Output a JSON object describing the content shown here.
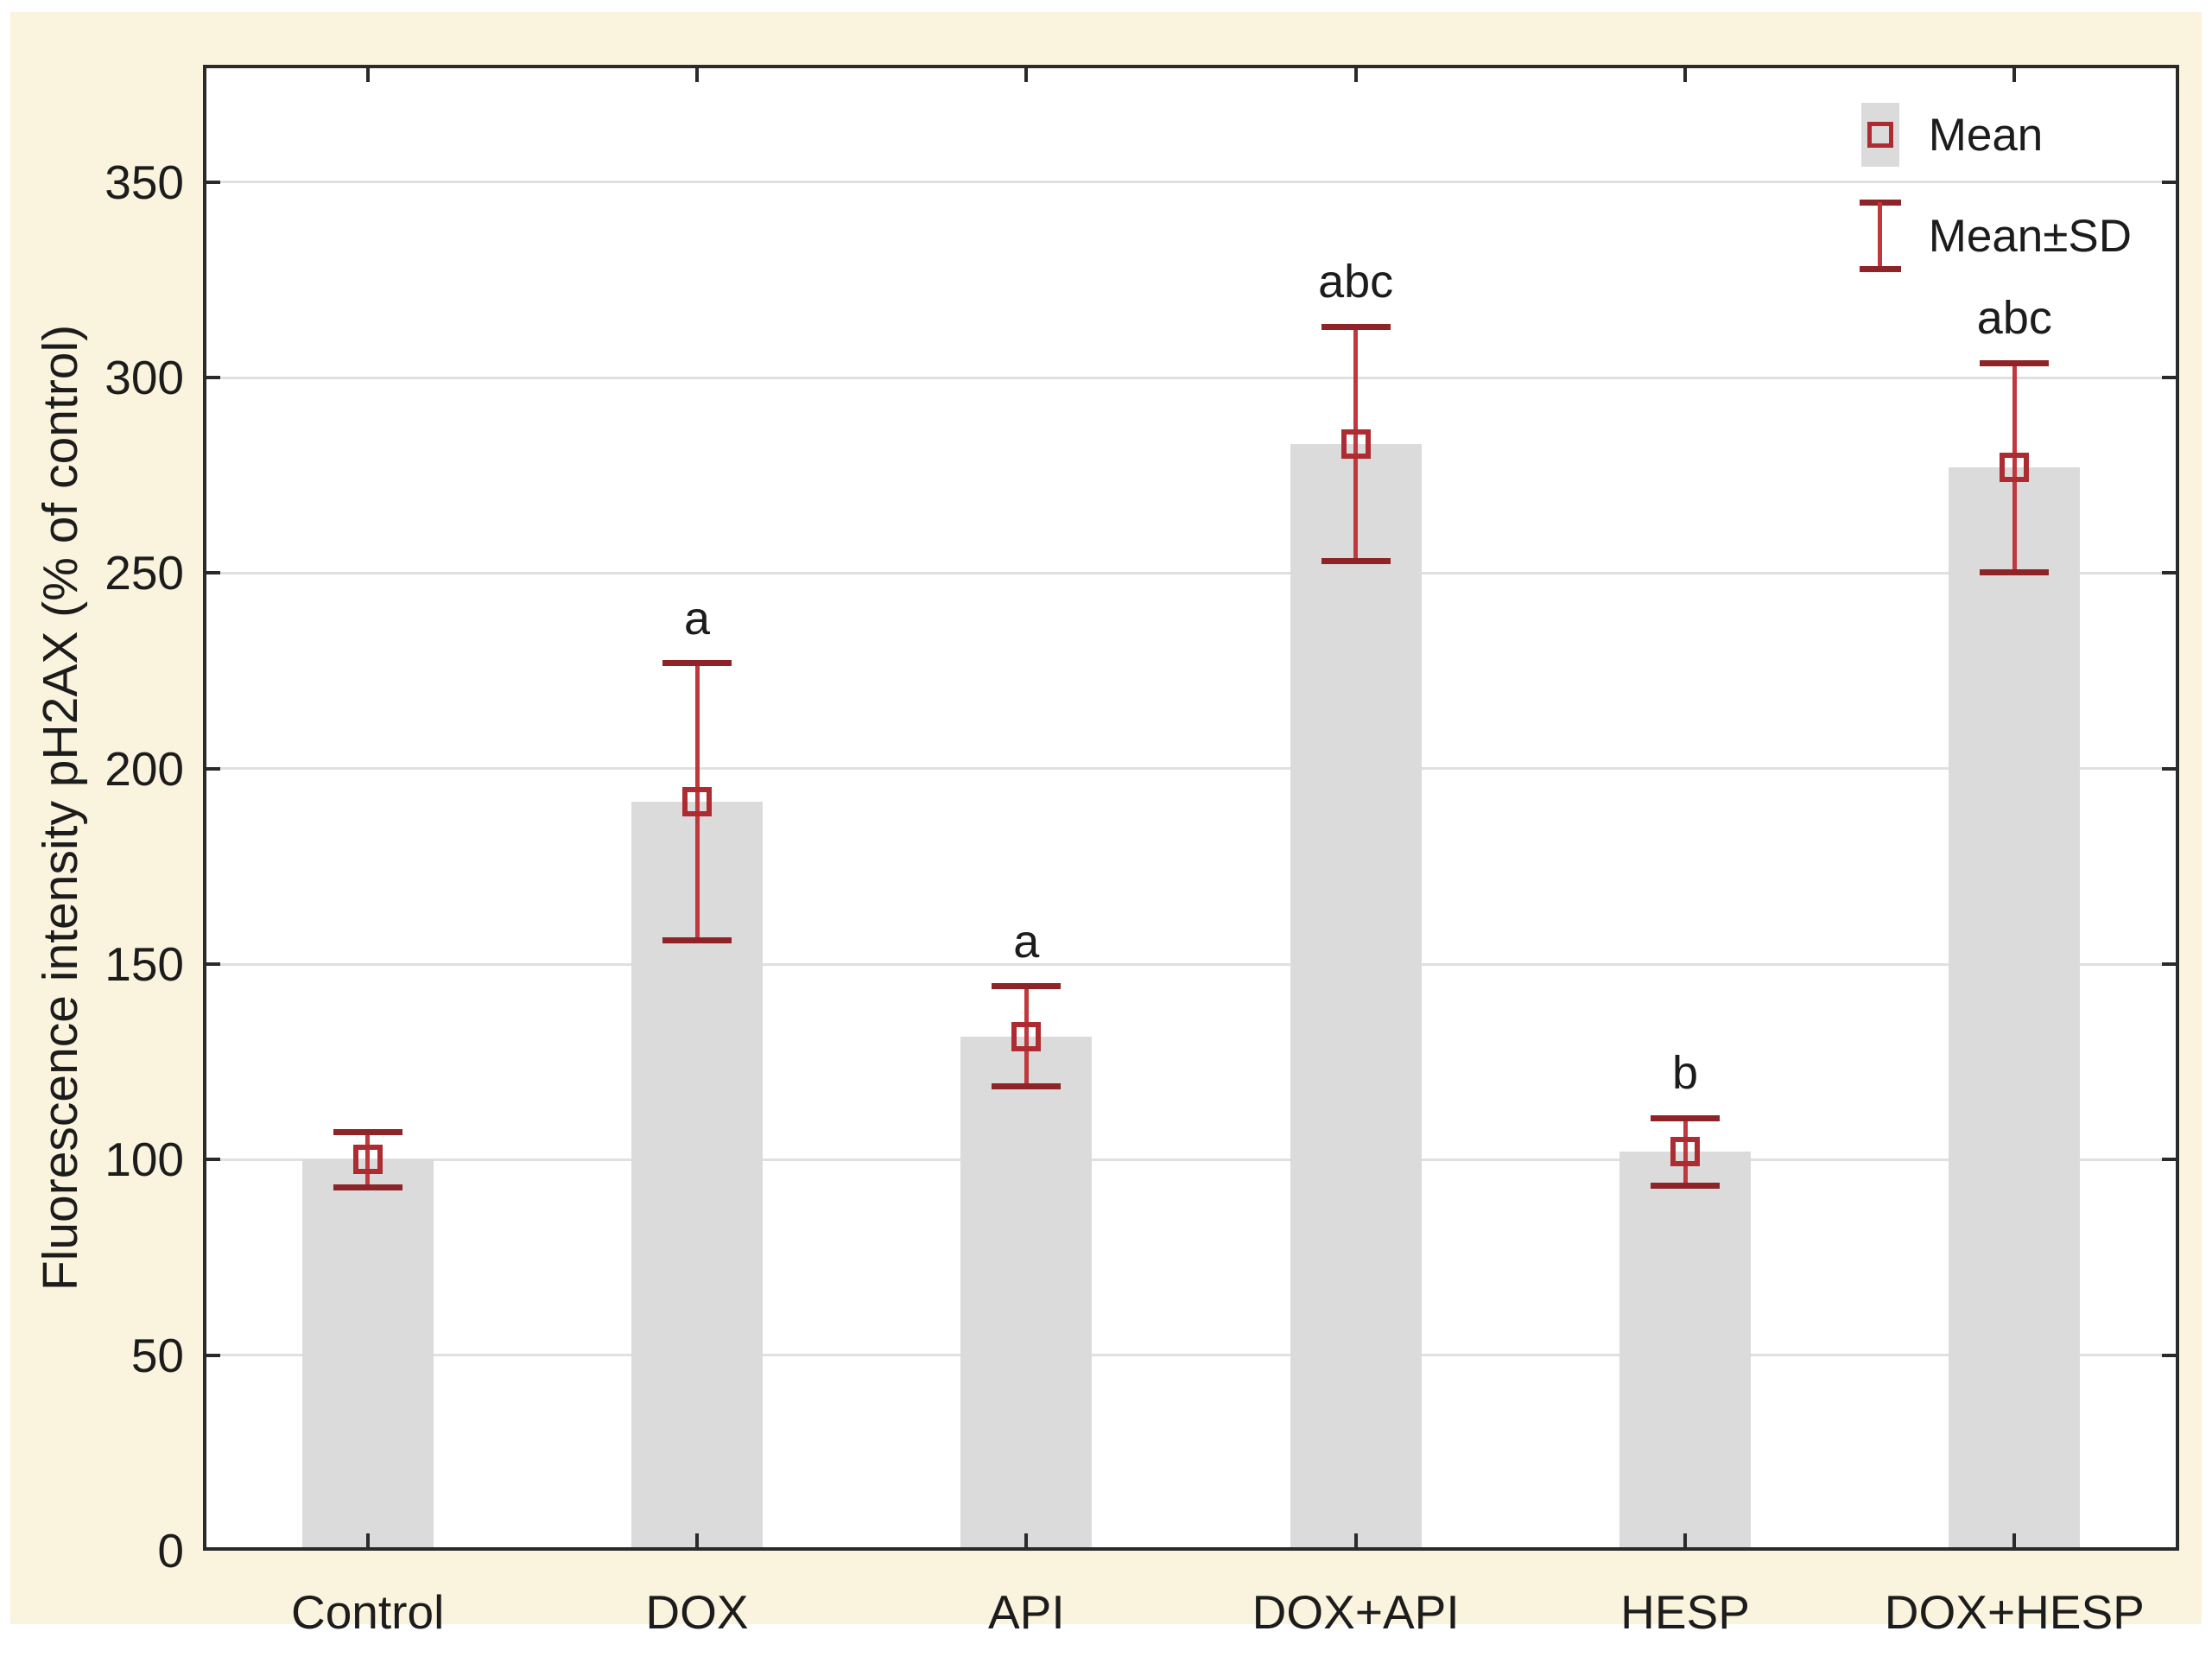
{
  "colors": {
    "background": "#FAF3DD",
    "plot_background": "#FFFFFF",
    "bar_fill": "#DBDBDB",
    "grid_line": "#E0E0E0",
    "axis_frame": "#2A2A2A",
    "error_line": "#C0383D",
    "error_cap": "#8E2428",
    "mean_marker": "#AD2C31",
    "text": "#1C1C1C"
  },
  "chart_data": {
    "type": "bar",
    "title": "",
    "xlabel": "",
    "ylabel": "Fluorescence intensity pH2AX (% of control)",
    "categories": [
      "Control",
      "DOX",
      "API",
      "DOX+API",
      "HESP",
      "DOX+HESP"
    ],
    "values": [
      100,
      191.5,
      131.5,
      283,
      102,
      277
    ],
    "sd": [
      7,
      35.5,
      12.8,
      30,
      8.6,
      26.7
    ],
    "annotations": [
      "",
      "a",
      "a",
      "abc",
      "b",
      "abc"
    ],
    "ylim": [
      0,
      380
    ],
    "yticks": [
      0,
      50,
      100,
      150,
      200,
      250,
      300,
      350
    ],
    "grid": "horizontal",
    "error_bars": "mean_plus_minus_sd",
    "legend": {
      "position": "top-right",
      "items": [
        {
          "symbol": "square",
          "label": "Mean"
        },
        {
          "symbol": "errorbar",
          "label": "Mean±SD"
        }
      ]
    }
  }
}
